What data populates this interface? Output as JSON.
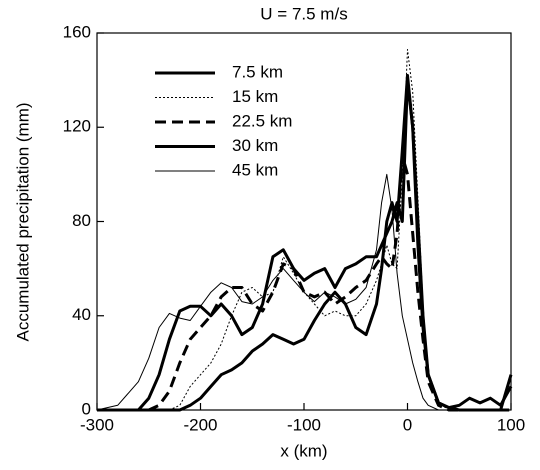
{
  "chart_data": {
    "type": "line",
    "title": "U = 7.5 m/s",
    "x_label": "x (km)",
    "y_label": "Accumulated precipitation (mm)",
    "x": [
      -300,
      -280,
      -260,
      -250,
      -240,
      -230,
      -220,
      -210,
      -200,
      -190,
      -180,
      -170,
      -160,
      -150,
      -140,
      -130,
      -120,
      -110,
      -100,
      -90,
      -80,
      -70,
      -60,
      -50,
      -40,
      -30,
      -25,
      -20,
      -15,
      -10,
      -5,
      0,
      5,
      10,
      15,
      20,
      30,
      40,
      50,
      60,
      70,
      80,
      90,
      100
    ],
    "series": [
      {
        "name": "7.5 km",
        "color": "#000000",
        "style": "thick",
        "values": [
          0,
          0,
          0,
          5,
          15,
          30,
          42,
          44,
          44,
          40,
          45,
          40,
          32,
          35,
          45,
          65,
          68,
          60,
          55,
          58,
          60,
          52,
          60,
          62,
          65,
          65,
          70,
          75,
          80,
          88,
          80,
          140,
          120,
          70,
          35,
          15,
          3,
          1,
          2,
          5,
          3,
          5,
          2,
          10
        ]
      },
      {
        "name": "15 km",
        "color": "#000000",
        "style": "dotted",
        "values": [
          0,
          0,
          0,
          0,
          0,
          0,
          2,
          10,
          15,
          20,
          28,
          40,
          50,
          52,
          48,
          50,
          65,
          58,
          50,
          45,
          40,
          42,
          40,
          40,
          45,
          55,
          62,
          70,
          62,
          60,
          100,
          153,
          135,
          90,
          45,
          15,
          3,
          0,
          0,
          0,
          0,
          0,
          0,
          0
        ]
      },
      {
        "name": "22.5 km",
        "color": "#000000",
        "style": "dashed",
        "values": [
          0,
          0,
          0,
          0,
          2,
          8,
          20,
          30,
          35,
          40,
          48,
          52,
          52,
          45,
          42,
          50,
          62,
          60,
          50,
          48,
          50,
          45,
          48,
          52,
          55,
          62,
          65,
          62,
          60,
          75,
          108,
          100,
          75,
          50,
          30,
          12,
          2,
          0,
          0,
          0,
          0,
          0,
          0,
          0
        ]
      },
      {
        "name": "30 km",
        "color": "#000000",
        "style": "thick",
        "values": [
          0,
          0,
          0,
          0,
          0,
          0,
          0,
          2,
          5,
          10,
          15,
          17,
          20,
          25,
          28,
          32,
          30,
          28,
          30,
          38,
          45,
          50,
          45,
          35,
          32,
          45,
          60,
          80,
          88,
          80,
          110,
          142,
          120,
          80,
          40,
          15,
          3,
          1,
          0,
          0,
          0,
          0,
          0,
          15
        ]
      },
      {
        "name": "45 km",
        "color": "#000000",
        "style": "thin",
        "values": [
          0,
          2,
          12,
          22,
          35,
          41,
          39,
          38,
          44,
          50,
          54,
          52,
          46,
          45,
          48,
          55,
          60,
          55,
          50,
          46,
          50,
          48,
          45,
          47,
          52,
          68,
          88,
          100,
          85,
          58,
          40,
          30,
          20,
          12,
          5,
          2,
          0,
          0,
          0,
          0,
          0,
          0,
          0,
          0
        ]
      }
    ],
    "xlim": [
      -300,
      100
    ],
    "xticks": [
      -300,
      -200,
      -100,
      0,
      100
    ],
    "ylim": [
      0,
      160
    ],
    "yticks": [
      0,
      40,
      80,
      120,
      160
    ],
    "legend": "upper-left"
  }
}
